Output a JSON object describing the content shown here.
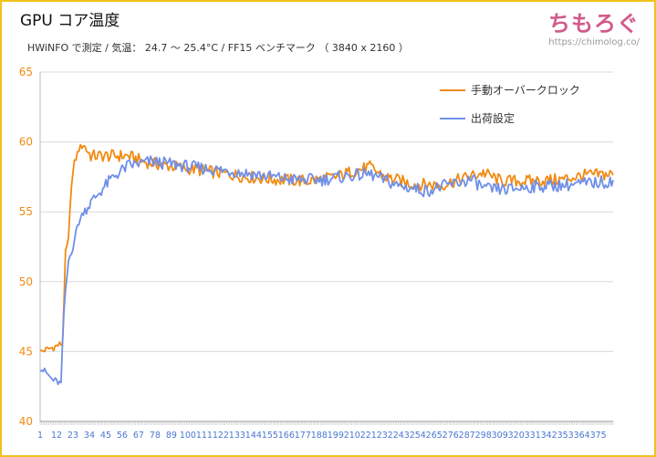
{
  "title": "GPU コア温度",
  "subtitle": "HWiNFO で測定 / 気温： 24.7 〜 25.4°C / FF15 ベンチマーク （ 3840 x 2160 ）",
  "brand": {
    "logo": "ちもろぐ",
    "url": "https://chimolog.co/"
  },
  "colors": {
    "manual": "#f28a10",
    "default": "#6f8fe8",
    "frame": "#f2c21b"
  },
  "chart_data": {
    "type": "line",
    "xlim": [
      1,
      385
    ],
    "ylim": [
      40,
      65
    ],
    "yticks": [
      "40",
      "45",
      "50",
      "55",
      "60",
      "65"
    ],
    "xticks": [
      "1",
      "12",
      "23",
      "34",
      "45",
      "56",
      "67",
      "78",
      "89",
      "100",
      "111",
      "122",
      "133",
      "144",
      "155",
      "166",
      "177",
      "188",
      "199",
      "210",
      "221",
      "232",
      "243",
      "254",
      "265",
      "276",
      "287",
      "298",
      "309",
      "320",
      "331",
      "342",
      "353",
      "364",
      "375"
    ],
    "grid": true,
    "legend_position": "top-right",
    "series": [
      {
        "name": "手動オーバークロック",
        "color": "#f28a10",
        "points": [
          [
            1,
            45
          ],
          [
            10,
            45.3
          ],
          [
            16,
            45.6
          ],
          [
            18,
            52
          ],
          [
            20,
            53
          ],
          [
            22,
            57
          ],
          [
            24,
            58.5
          ],
          [
            27,
            59.5
          ],
          [
            30,
            59.8
          ],
          [
            35,
            59
          ],
          [
            45,
            59
          ],
          [
            60,
            59
          ],
          [
            70,
            58.6
          ],
          [
            80,
            58.4
          ],
          [
            100,
            58.1
          ],
          [
            120,
            57.8
          ],
          [
            140,
            57.5
          ],
          [
            160,
            57.3
          ],
          [
            180,
            57.2
          ],
          [
            200,
            57.5
          ],
          [
            210,
            57.9
          ],
          [
            222,
            58.2
          ],
          [
            232,
            57.5
          ],
          [
            250,
            57
          ],
          [
            270,
            56.9
          ],
          [
            285,
            57.4
          ],
          [
            298,
            57.8
          ],
          [
            310,
            57.2
          ],
          [
            330,
            57.2
          ],
          [
            350,
            57.3
          ],
          [
            365,
            57.6
          ],
          [
            385,
            57.7
          ]
        ]
      },
      {
        "name": "出荷設定",
        "color": "#6f8fe8",
        "points": [
          [
            1,
            43.8
          ],
          [
            5,
            43.5
          ],
          [
            9,
            43
          ],
          [
            15,
            42.7
          ],
          [
            17,
            48
          ],
          [
            20,
            51.5
          ],
          [
            23,
            52.5
          ],
          [
            26,
            54
          ],
          [
            30,
            55
          ],
          [
            40,
            56.3
          ],
          [
            50,
            57.5
          ],
          [
            60,
            58.3
          ],
          [
            75,
            58.6
          ],
          [
            90,
            58.4
          ],
          [
            110,
            58.1
          ],
          [
            130,
            57.9
          ],
          [
            150,
            57.6
          ],
          [
            170,
            57.3
          ],
          [
            190,
            57.3
          ],
          [
            210,
            57.6
          ],
          [
            222,
            57.7
          ],
          [
            240,
            56.9
          ],
          [
            260,
            56.5
          ],
          [
            270,
            56.8
          ],
          [
            290,
            57.3
          ],
          [
            300,
            56.6
          ],
          [
            315,
            56.6
          ],
          [
            330,
            56.8
          ],
          [
            350,
            56.9
          ],
          [
            365,
            57
          ],
          [
            385,
            57.2
          ]
        ]
      }
    ]
  }
}
